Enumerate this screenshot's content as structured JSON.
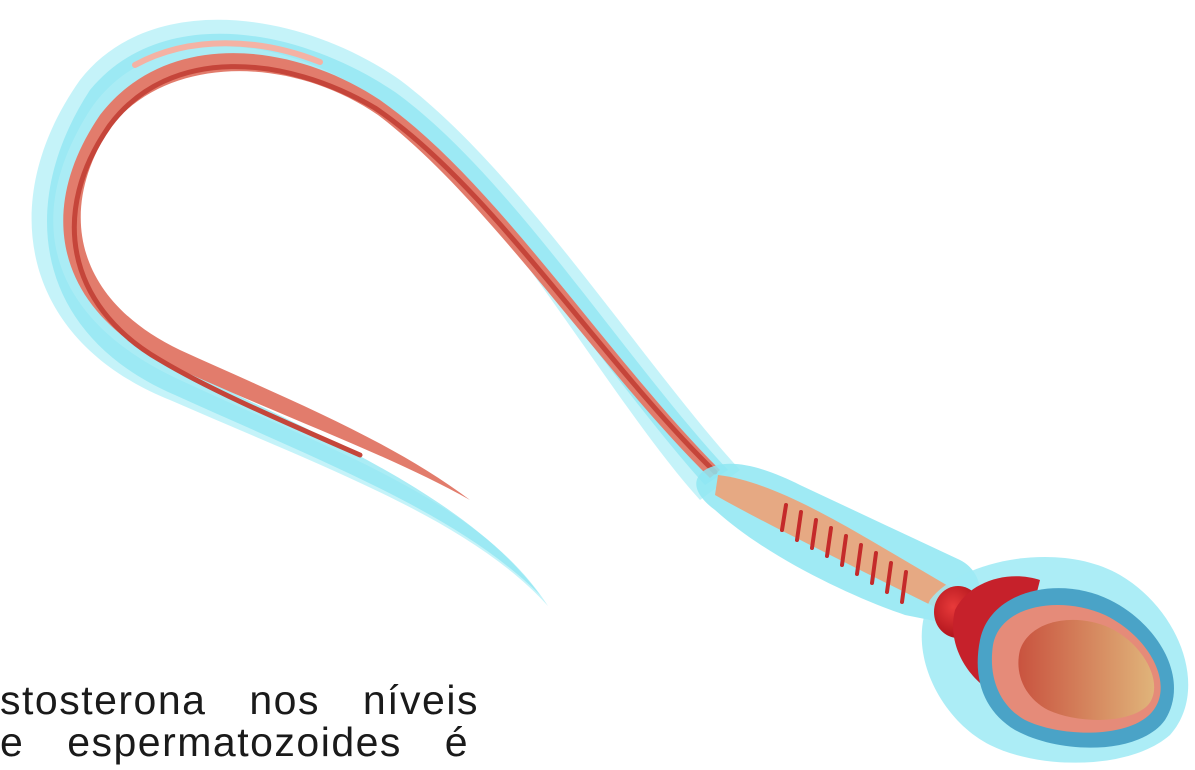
{
  "illustration": {
    "subject": "sperm-cell-illustration",
    "colors": {
      "membrane": "#8ee6f2",
      "membrane_light": "#c8f3f8",
      "flagellum": "#e07a6a",
      "flagellum_core": "#c9483c",
      "midpiece_band": "#c42a2a",
      "neck": "#e3a27f",
      "head_outer": "#4aa3c7",
      "head_mid": "#e58b79",
      "head_core": "#d9995c",
      "centriole": "#c61f2a"
    }
  },
  "caption": {
    "line1": "stosterona nos níveis",
    "line2": "e espermatozoides é"
  }
}
